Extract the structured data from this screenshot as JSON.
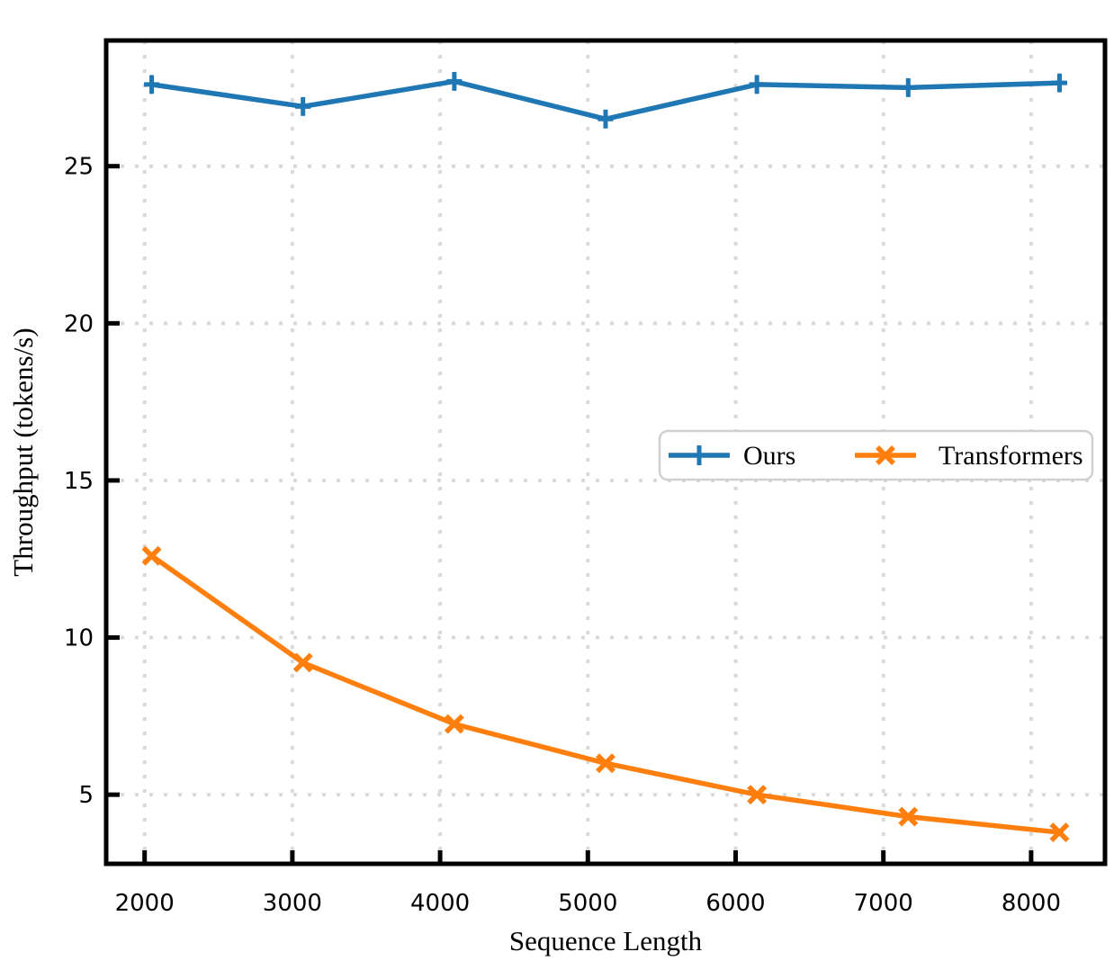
{
  "figure": {
    "background": "#ffffff",
    "frame_color": "#000000",
    "tick_label_values_x": [
      "2000",
      "3000",
      "4000",
      "5000",
      "6000",
      "7000",
      "8000"
    ],
    "tick_label_values_y": [
      "5",
      "10",
      "15",
      "20",
      "25"
    ]
  },
  "chart_data": {
    "type": "line",
    "title": "",
    "xlabel": "Sequence Length",
    "ylabel": "Throughput (tokens/s)",
    "x": [
      2048,
      3072,
      4096,
      5120,
      6144,
      7168,
      8192
    ],
    "series": [
      {
        "name": "Ours",
        "color": "#1f77b4",
        "marker": "plus",
        "yerr": 0.3,
        "values": [
          27.6,
          26.9,
          27.7,
          26.5,
          27.6,
          27.5,
          27.65
        ]
      },
      {
        "name": "Transformers",
        "color": "#ff7f0e",
        "marker": "x",
        "yerr": 0,
        "values": [
          12.6,
          9.2,
          7.25,
          6.0,
          5.0,
          4.3,
          3.8
        ]
      }
    ],
    "xticks": [
      2000,
      3000,
      4000,
      5000,
      6000,
      7000,
      8000
    ],
    "yticks": [
      5,
      10,
      15,
      20,
      25
    ],
    "xlim": [
      1740,
      8500
    ],
    "ylim": [
      2.8,
      29.0
    ],
    "grid": {
      "visible": true,
      "style": "dotted",
      "color": "#d9d9d9"
    },
    "legend": {
      "position": "inside-center-right",
      "border_color": "#d0d0d0",
      "background": "#ffffff"
    }
  }
}
